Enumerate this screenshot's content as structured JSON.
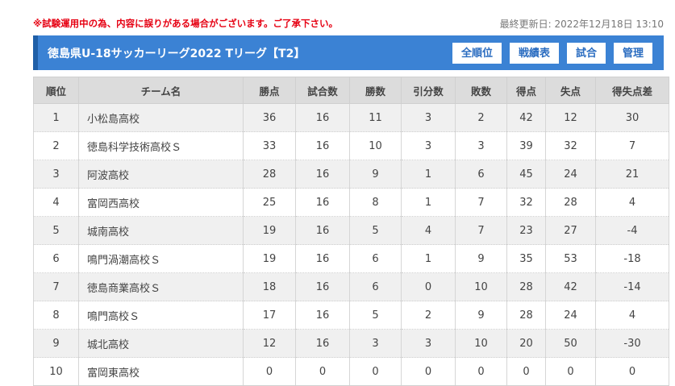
{
  "notice": "※試験運用中の為、内容に誤りがある場合がございます。ご了承下さい。",
  "updated": "最終更新日: 2022年12月18日 13:10",
  "title": "徳島県U-18サッカーリーグ2022 Tリーグ【T2】",
  "buttons": [
    "全順位",
    "戦績表",
    "試合",
    "管理"
  ],
  "table": {
    "headers": [
      "順位",
      "チーム名",
      "勝点",
      "試合数",
      "勝数",
      "引分数",
      "敗数",
      "得点",
      "失点",
      "得失点差"
    ],
    "rows": [
      [
        "1",
        "小松島高校",
        "36",
        "16",
        "11",
        "3",
        "2",
        "42",
        "12",
        "30"
      ],
      [
        "2",
        "徳島科学技術高校Ｓ",
        "33",
        "16",
        "10",
        "3",
        "3",
        "39",
        "32",
        "7"
      ],
      [
        "3",
        "阿波高校",
        "28",
        "16",
        "9",
        "1",
        "6",
        "45",
        "24",
        "21"
      ],
      [
        "4",
        "富岡西高校",
        "25",
        "16",
        "8",
        "1",
        "7",
        "32",
        "28",
        "4"
      ],
      [
        "5",
        "城南高校",
        "19",
        "16",
        "5",
        "4",
        "7",
        "23",
        "27",
        "-4"
      ],
      [
        "6",
        "鳴門渦潮高校Ｓ",
        "19",
        "16",
        "6",
        "1",
        "9",
        "35",
        "53",
        "-18"
      ],
      [
        "7",
        "徳島商業高校Ｓ",
        "18",
        "16",
        "6",
        "0",
        "10",
        "28",
        "42",
        "-14"
      ],
      [
        "8",
        "鳴門高校Ｓ",
        "17",
        "16",
        "5",
        "2",
        "9",
        "28",
        "24",
        "4"
      ],
      [
        "9",
        "城北高校",
        "12",
        "16",
        "3",
        "3",
        "10",
        "20",
        "50",
        "-30"
      ],
      [
        "10",
        "富岡東高校",
        "0",
        "0",
        "0",
        "0",
        "0",
        "0",
        "0",
        "0"
      ]
    ]
  }
}
